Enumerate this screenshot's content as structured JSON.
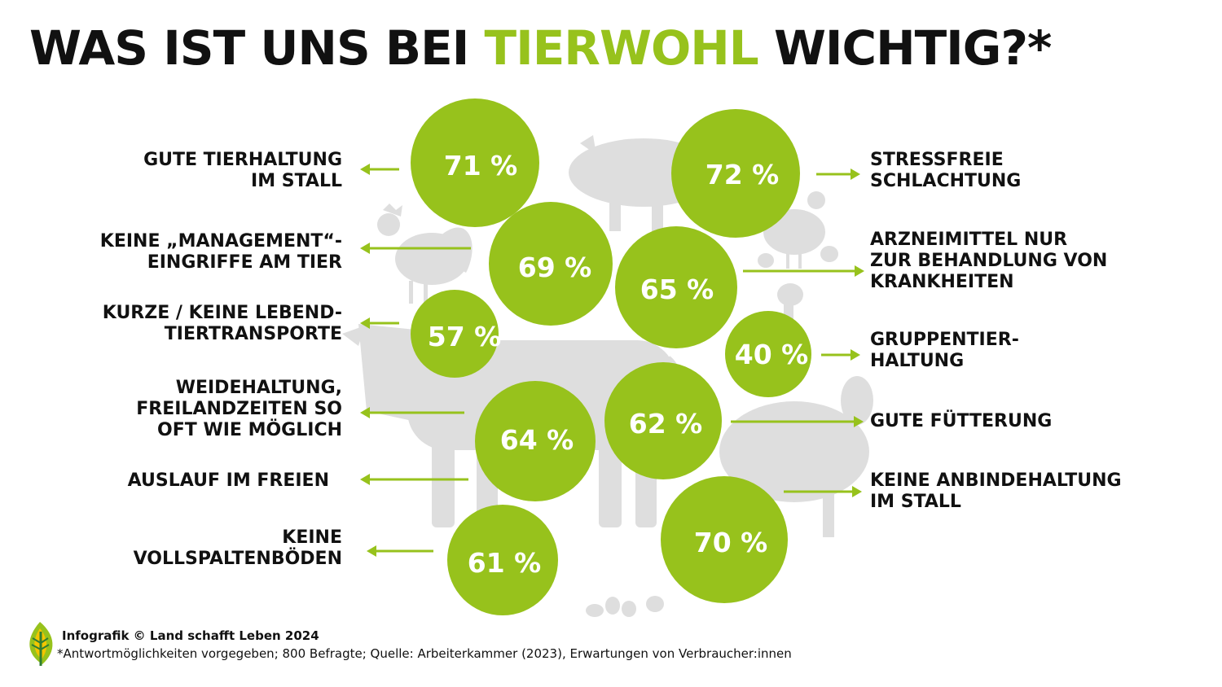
{
  "title": {
    "part1": "WAS IST UNS BEI ",
    "accent": "TIERWOHL",
    "part2": " WICHTIG?*"
  },
  "colors": {
    "accent": "#97c21c",
    "silhouette": "#dedede",
    "text": "#111111"
  },
  "chart_data": {
    "type": "bubble",
    "title": "WAS IST UNS BEI TIERWOHL WICHTIG?*",
    "unit": "%",
    "items": [
      {
        "label": "GUTE TIERHALTUNG\nIM STALL",
        "value": 71,
        "display": "71 %",
        "side": "left"
      },
      {
        "label": "KEINE „MANAGEMENT“-\nEINGRIFFE AM TIER",
        "value": 69,
        "display": "69 %",
        "side": "left"
      },
      {
        "label": "KURZE / KEINE LEBEND-\nTIERTRANSPORTE",
        "value": 57,
        "display": "57 %",
        "side": "left"
      },
      {
        "label": "WEIDEHALTUNG,\nFREILANDZEITEN SO\nOFT WIE MÖGLICH",
        "value": 64,
        "display": "64 %",
        "side": "left"
      },
      {
        "label": "AUSLAUF IM FREIEN",
        "value": 64,
        "display": "64 %",
        "side": "left"
      },
      {
        "label": "KEINE\nVOLLSPALTENBÖDEN",
        "value": 61,
        "display": "61 %",
        "side": "left"
      },
      {
        "label": "STRESSFREIE\nSCHLACHTUNG",
        "value": 72,
        "display": "72 %",
        "side": "right"
      },
      {
        "label": "ARZNEIMITTEL NUR\nZUR BEHANDLUNG VON\nKRANKHEITEN",
        "value": 65,
        "display": "65 %",
        "side": "right"
      },
      {
        "label": "GRUPPENTIER-\nHALTUNG",
        "value": 40,
        "display": "40 %",
        "side": "right"
      },
      {
        "label": "GUTE FÜTTERUNG",
        "value": 62,
        "display": "62 %",
        "side": "right"
      },
      {
        "label": "KEINE ANBINDEHALTUNG\nIM STALL",
        "value": 70,
        "display": "70 %",
        "side": "right"
      }
    ]
  },
  "footer": {
    "credit": "Infografik © Land schafft Leben 2024",
    "note": "*Antwortmöglichkeiten vorgegeben; 800 Befragte; Quelle: Arbeiterkammer (2023), Erwartungen von Verbraucher:innen"
  }
}
